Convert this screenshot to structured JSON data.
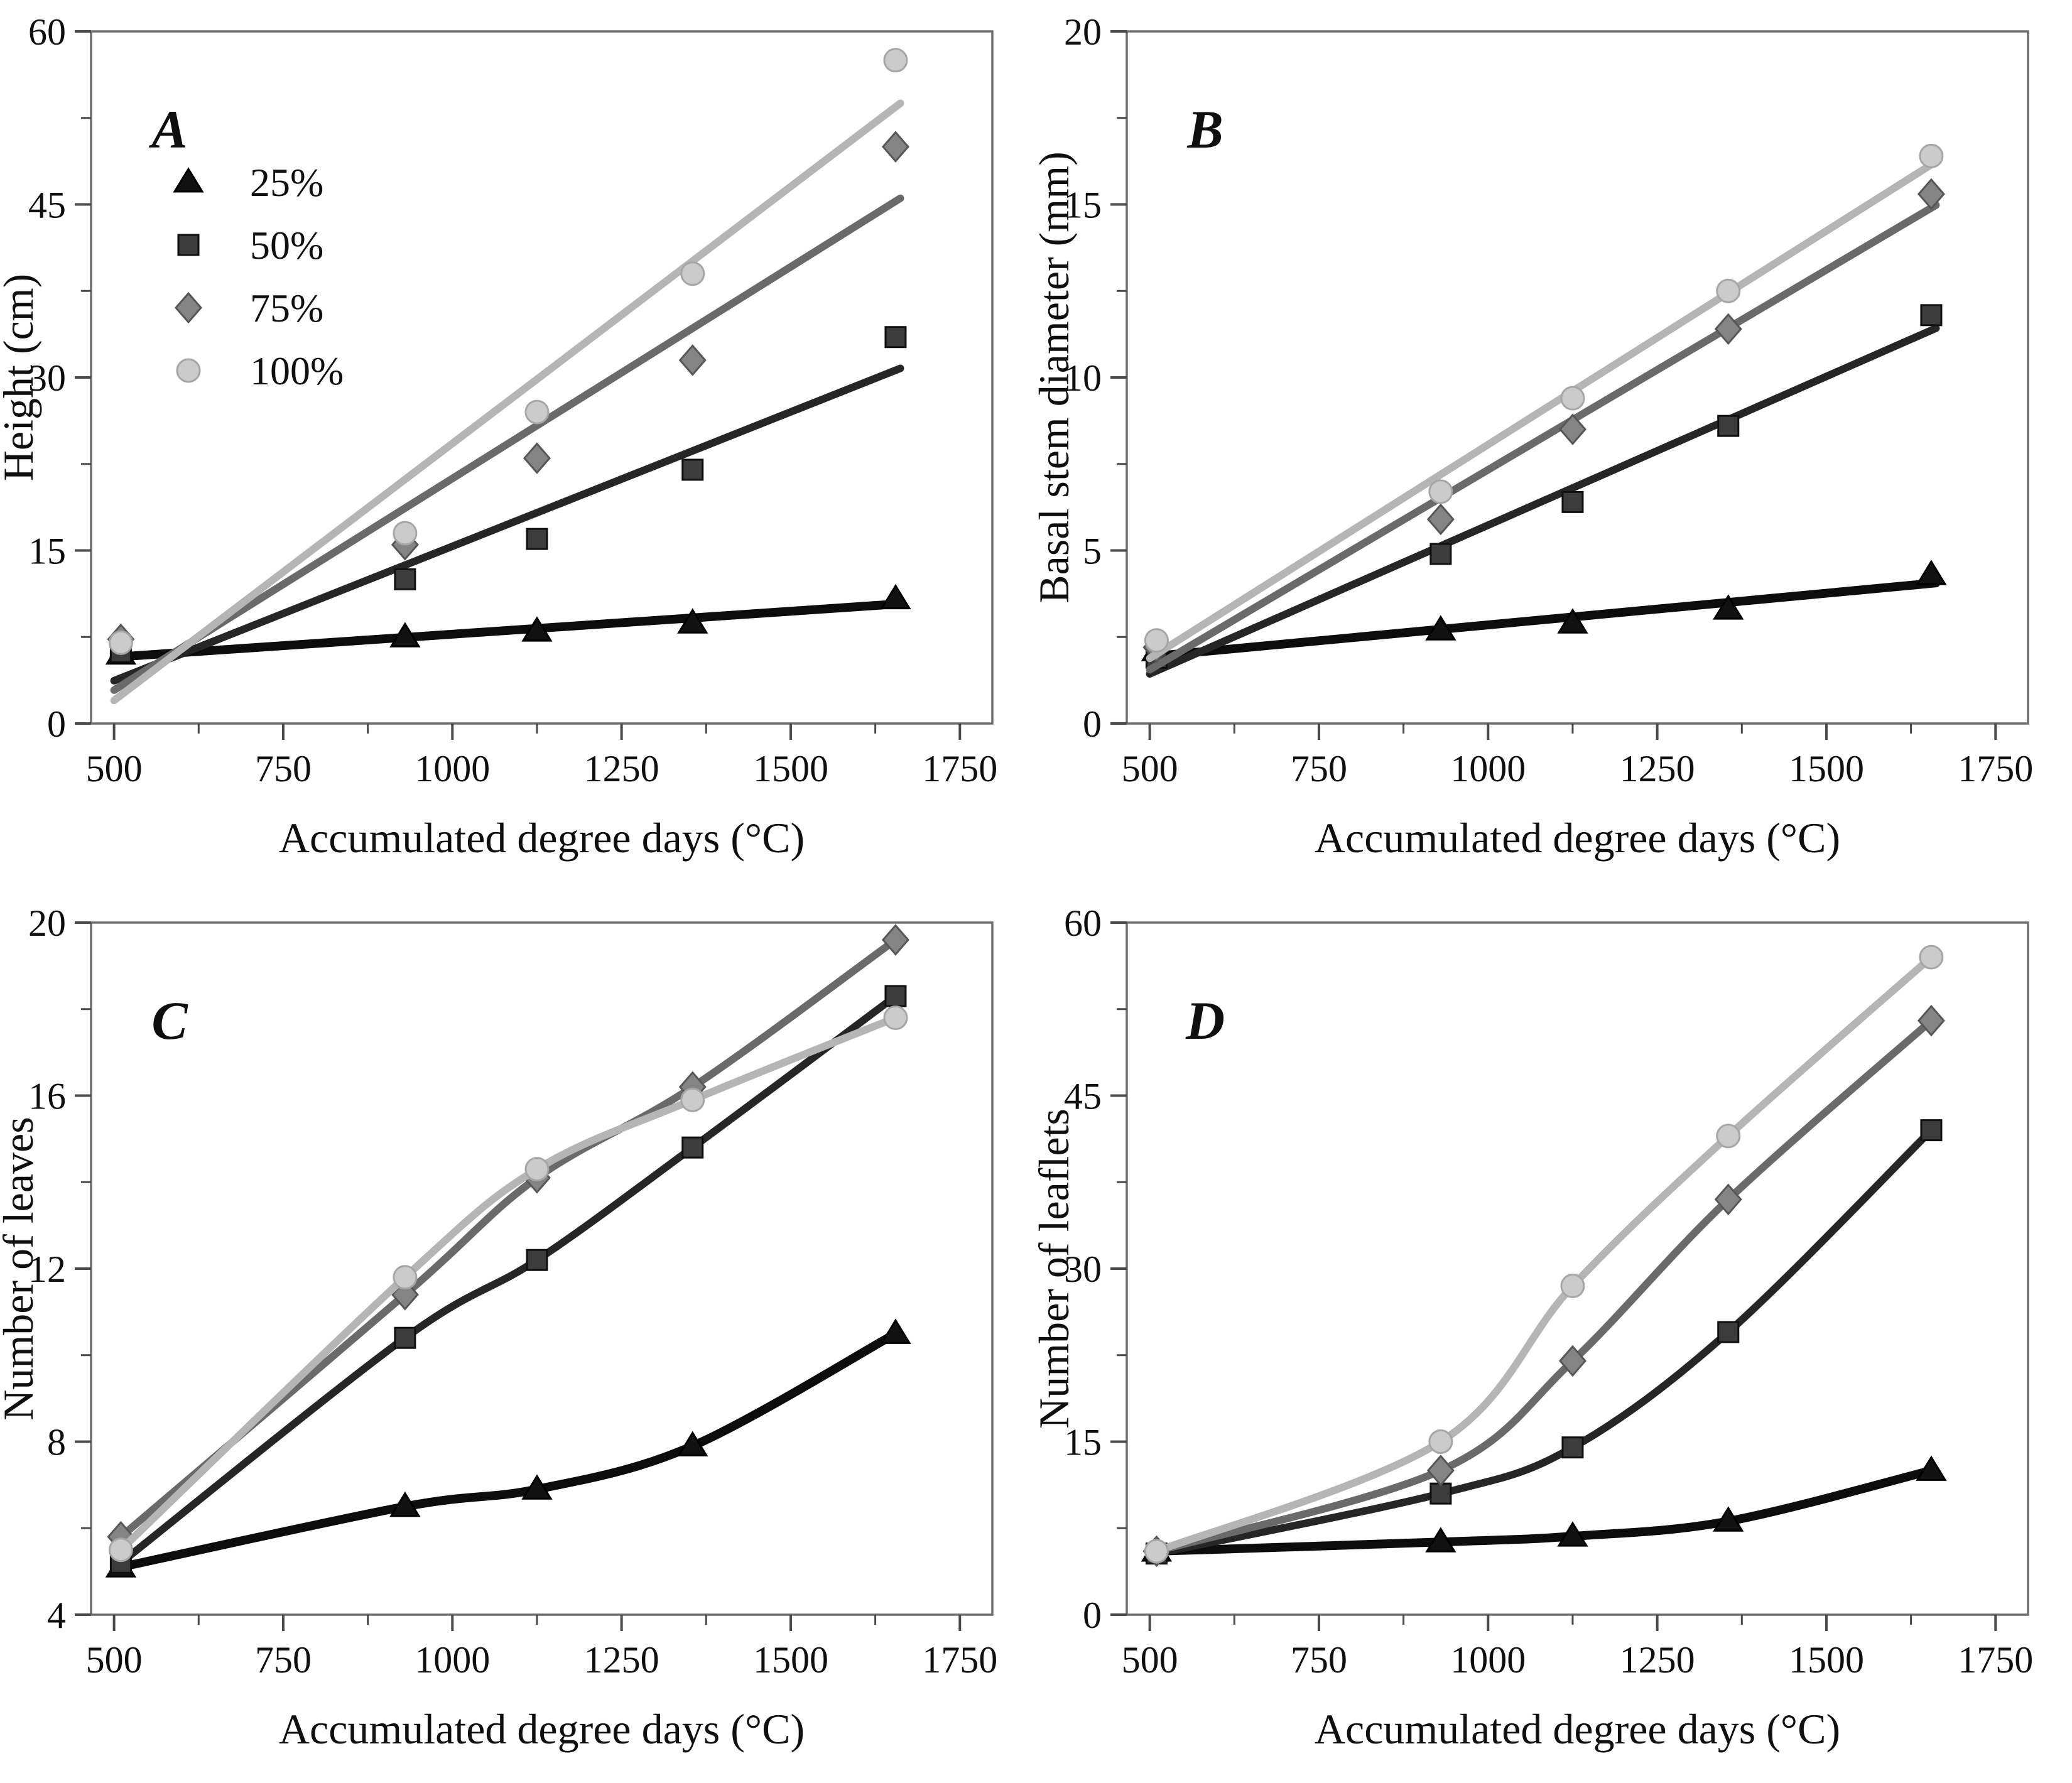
{
  "figure": {
    "background": "#ffffff",
    "text_color": "#0f0f0f",
    "frame_color": "#6e6e6e",
    "tick_color": "#4a4a4a"
  },
  "series_styles": {
    "25%": {
      "line": "#0c0c0c",
      "line_width": 14,
      "marker_fill": "#111111",
      "marker_edge": "#000000"
    },
    "50%": {
      "line": "#262626",
      "line_width": 12,
      "marker_fill": "#3c3c3c",
      "marker_edge": "#101010"
    },
    "75%": {
      "line": "#6a6a6a",
      "line_width": 12,
      "marker_fill": "#848484",
      "marker_edge": "#565656"
    },
    "100%": {
      "line": "#b5b5b5",
      "line_width": 12,
      "marker_fill": "#cbcbcb",
      "marker_edge": "#a6a6a6"
    }
  },
  "legend": {
    "items": [
      {
        "label": "25%",
        "marker": "triangle"
      },
      {
        "label": "50%",
        "marker": "square"
      },
      {
        "label": "75%",
        "marker": "diamond"
      },
      {
        "label": "100%",
        "marker": "circle"
      }
    ]
  },
  "chart_data": [
    {
      "id": "A",
      "type": "scatter",
      "panel_label": "A",
      "xlabel": "Accumulated degree days (°C)",
      "ylabel": "Height (cm)",
      "xlim": [
        466,
        1798
      ],
      "xticks": [
        500,
        750,
        1000,
        1250,
        1500,
        1750
      ],
      "x_minor": [
        625,
        875,
        1125,
        1375,
        1625
      ],
      "ylim": [
        0,
        60
      ],
      "yticks": [
        0,
        15,
        30,
        45,
        60
      ],
      "y_minor": [
        7.5,
        22.5,
        37.5,
        52.5
      ],
      "x": [
        510,
        930,
        1125,
        1355,
        1655
      ],
      "fit": "linear",
      "show_legend": true,
      "series": [
        {
          "name": "25%",
          "marker": "triangle",
          "values": [
            6.0,
            7.5,
            8.0,
            8.7,
            10.8
          ]
        },
        {
          "name": "50%",
          "marker": "square",
          "values": [
            6.2,
            12.5,
            16.0,
            22.0,
            33.5
          ]
        },
        {
          "name": "75%",
          "marker": "diamond",
          "values": [
            7.3,
            15.5,
            23.0,
            31.5,
            50.0
          ]
        },
        {
          "name": "100%",
          "marker": "circle",
          "values": [
            7.0,
            16.5,
            27.0,
            39.0,
            57.5
          ]
        }
      ]
    },
    {
      "id": "B",
      "type": "scatter",
      "panel_label": "B",
      "xlabel": "Accumulated degree days (°C)",
      "ylabel": "Basal stem diameter (mm)",
      "xlim": [
        466,
        1798
      ],
      "xticks": [
        500,
        750,
        1000,
        1250,
        1500,
        1750
      ],
      "x_minor": [
        625,
        875,
        1125,
        1375,
        1625
      ],
      "ylim": [
        0,
        20
      ],
      "yticks": [
        0,
        5,
        10,
        15,
        20
      ],
      "y_minor": [
        2.5,
        7.5,
        12.5,
        17.5
      ],
      "x": [
        510,
        930,
        1125,
        1355,
        1655
      ],
      "fit": "linear",
      "show_legend": false,
      "series": [
        {
          "name": "25%",
          "marker": "triangle",
          "values": [
            2.1,
            2.7,
            2.9,
            3.3,
            4.3
          ]
        },
        {
          "name": "50%",
          "marker": "square",
          "values": [
            1.9,
            4.9,
            6.4,
            8.6,
            11.8
          ]
        },
        {
          "name": "75%",
          "marker": "diamond",
          "values": [
            2.2,
            5.9,
            8.5,
            11.4,
            15.3
          ]
        },
        {
          "name": "100%",
          "marker": "circle",
          "values": [
            2.4,
            6.7,
            9.4,
            12.5,
            16.4
          ]
        }
      ]
    },
    {
      "id": "C",
      "type": "scatter",
      "panel_label": "C",
      "xlabel": "Accumulated degree days (°C)",
      "ylabel": "Number of leaves",
      "xlim": [
        466,
        1798
      ],
      "xticks": [
        500,
        750,
        1000,
        1250,
        1500,
        1750
      ],
      "x_minor": [
        625,
        875,
        1125,
        1375,
        1625
      ],
      "ylim": [
        4,
        20
      ],
      "yticks": [
        4,
        8,
        12,
        16,
        20
      ],
      "y_minor": [
        6,
        10,
        14,
        18
      ],
      "x": [
        510,
        930,
        1125,
        1355,
        1655
      ],
      "fit": "smooth",
      "show_legend": false,
      "series": [
        {
          "name": "25%",
          "marker": "triangle",
          "values": [
            5.1,
            6.5,
            6.9,
            7.9,
            10.5
          ]
        },
        {
          "name": "50%",
          "marker": "square",
          "values": [
            5.2,
            10.4,
            12.2,
            14.8,
            18.3
          ]
        },
        {
          "name": "75%",
          "marker": "diamond",
          "values": [
            5.8,
            11.4,
            14.1,
            16.2,
            19.6
          ]
        },
        {
          "name": "100%",
          "marker": "circle",
          "values": [
            5.5,
            11.8,
            14.3,
            15.9,
            17.8
          ]
        }
      ]
    },
    {
      "id": "D",
      "type": "scatter",
      "panel_label": "D",
      "xlabel": "Accumulated degree days (°C)",
      "ylabel": "Number of leaflets",
      "xlim": [
        466,
        1798
      ],
      "xticks": [
        500,
        750,
        1000,
        1250,
        1500,
        1750
      ],
      "x_minor": [
        625,
        875,
        1125,
        1375,
        1625
      ],
      "ylim": [
        0,
        60
      ],
      "yticks": [
        0,
        15,
        30,
        45,
        60
      ],
      "y_minor": [
        7.5,
        22.5,
        37.5,
        52.5
      ],
      "x": [
        510,
        930,
        1125,
        1355,
        1655
      ],
      "fit": "smooth",
      "show_legend": false,
      "series": [
        {
          "name": "25%",
          "marker": "triangle",
          "values": [
            5.5,
            6.3,
            6.8,
            8.1,
            12.5
          ]
        },
        {
          "name": "50%",
          "marker": "square",
          "values": [
            5.3,
            10.5,
            14.5,
            24.5,
            42.0
          ]
        },
        {
          "name": "75%",
          "marker": "diamond",
          "values": [
            5.5,
            12.5,
            22.0,
            36.0,
            51.5
          ]
        },
        {
          "name": "100%",
          "marker": "circle",
          "values": [
            5.5,
            15.0,
            28.5,
            41.5,
            57.0
          ]
        }
      ]
    }
  ]
}
